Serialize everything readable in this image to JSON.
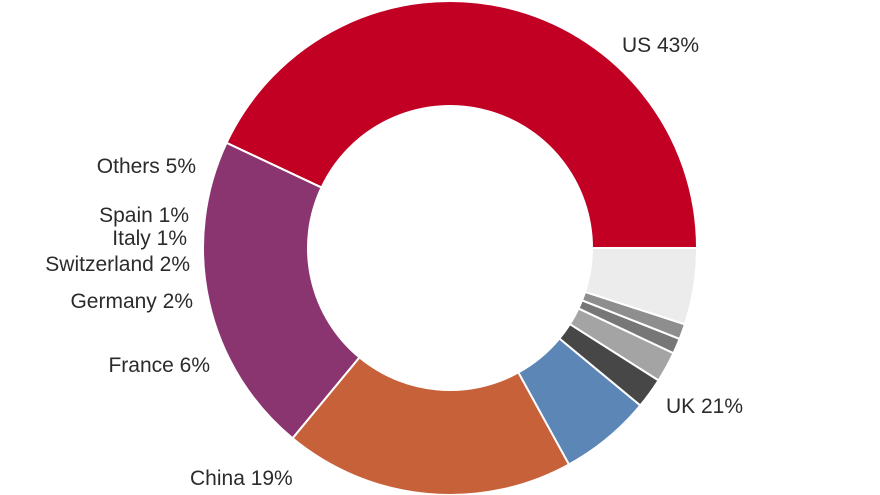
{
  "chart_data": {
    "type": "pie",
    "style": "donut",
    "title": "",
    "legend": "none",
    "slices": [
      {
        "label": "US",
        "value": 43,
        "display": "US 43%",
        "color": "#c10023"
      },
      {
        "label": "UK",
        "value": 21,
        "display": "UK 21%",
        "color": "#8a3570"
      },
      {
        "label": "China",
        "value": 19,
        "display": "China 19%",
        "color": "#c6613a"
      },
      {
        "label": "France",
        "value": 6,
        "display": "France 6%",
        "color": "#5b86b6"
      },
      {
        "label": "Germany",
        "value": 2,
        "display": "Germany 2%",
        "color": "#474747"
      },
      {
        "label": "Switzerland",
        "value": 2,
        "display": "Switzerland 2%",
        "color": "#a4a4a4"
      },
      {
        "label": "Italy",
        "value": 1,
        "display": "Italy 1%",
        "color": "#777777"
      },
      {
        "label": "Spain",
        "value": 1,
        "display": "Spain 1%",
        "color": "#8e8e8e"
      },
      {
        "label": "Others",
        "value": 5,
        "display": "Others 5%",
        "color": "#ececec"
      }
    ]
  }
}
